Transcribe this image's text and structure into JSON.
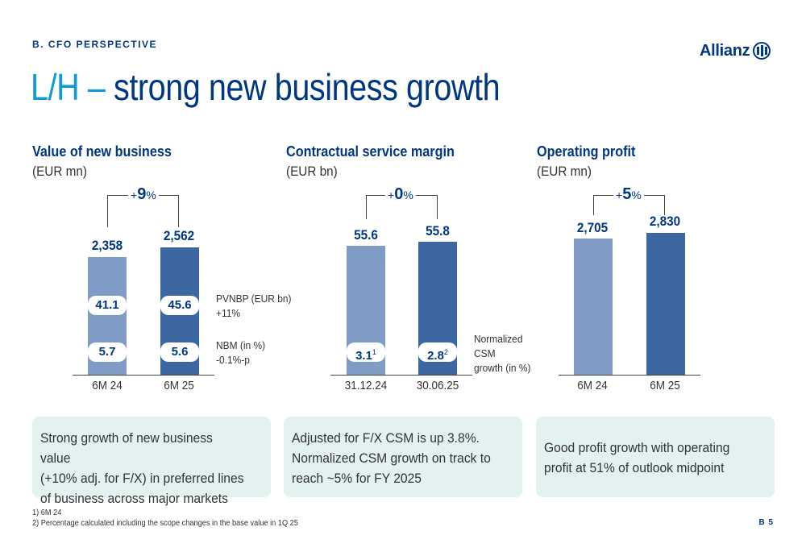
{
  "header": {
    "section": "B. CFO PERSPECTIVE",
    "logo": "Allianz",
    "title_prefix": "L/H –",
    "title_main": "strong new business growth"
  },
  "panels": [
    {
      "title": "Value of new business",
      "unit": "(EUR mn)",
      "growth": {
        "sign": "+",
        "num": "9",
        "pct": "%"
      },
      "bars": [
        {
          "category": "6M 24",
          "value_label": "2,358",
          "pill1": "41.1",
          "pill2": "5.7"
        },
        {
          "category": "6M 25",
          "value_label": "2,562",
          "pill1": "45.6",
          "pill2": "5.6"
        }
      ],
      "side_labels": {
        "pvnbp_line1": "PVNBP (EUR bn)",
        "pvnbp_line2": "+11%",
        "nbm_line1": "NBM (in %)",
        "nbm_line2": "-0.1%-p"
      },
      "box_lines": [
        "Strong growth of new business value",
        "(+10% adj. for F/X) in preferred lines",
        "of business across major markets"
      ]
    },
    {
      "title": "Contractual service margin",
      "unit": "(EUR bn)",
      "growth": {
        "sign": "+",
        "num": "0",
        "pct": "%"
      },
      "bars": [
        {
          "category": "31.12.24",
          "value_label": "55.6",
          "pill": "3.1",
          "pill_sup": "1"
        },
        {
          "category": "30.06.25",
          "value_label": "55.8",
          "pill": "2.8",
          "pill_sup": "2"
        }
      ],
      "side_labels": {
        "line1": "Normalized",
        "line2": "CSM",
        "line3": "growth (in %)"
      },
      "box_lines": [
        "Adjusted for F/X CSM is up 3.8%.",
        "Normalized CSM growth on track to",
        "reach ~5% for FY 2025"
      ]
    },
    {
      "title": "Operating profit",
      "unit": "(EUR mn)",
      "growth": {
        "sign": "+",
        "num": "5",
        "pct": "%"
      },
      "bars": [
        {
          "category": "6M 24",
          "value_label": "2,705"
        },
        {
          "category": "6M 25",
          "value_label": "2,830"
        }
      ],
      "box_lines": [
        "Good profit growth with operating",
        "profit at 51% of outlook midpoint"
      ]
    }
  ],
  "footnotes": [
    "1)   6M 24",
    "2)   Percentage calculated including the scope changes in the base value in 1Q 25"
  ],
  "page_number": "B 5",
  "colors": {
    "brand": "#003781",
    "accent": "#0f9bd7",
    "bar_light": "#7f9bc6",
    "bar_dark": "#3d67a3",
    "box_bg": "#e3f1f1"
  }
}
